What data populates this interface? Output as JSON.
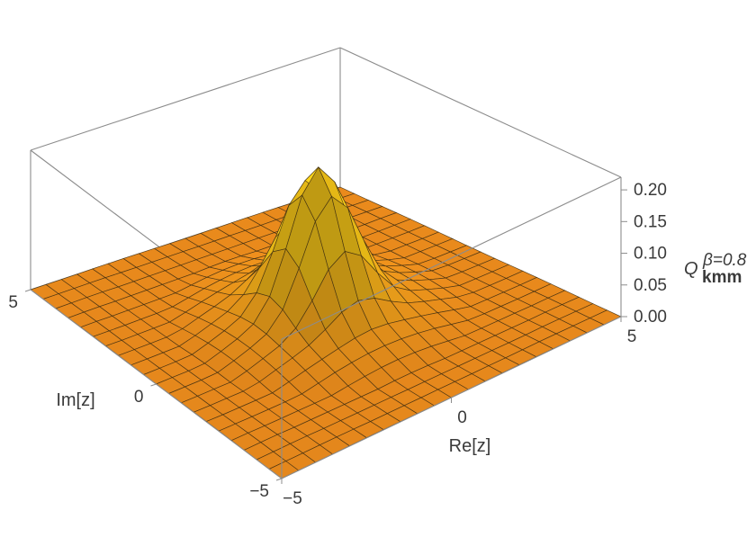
{
  "chart_data": {
    "type": "surface3d",
    "title": "",
    "xlabel": "Re[z]",
    "ylabel": "Im[z]",
    "zlabel": {
      "main": "Q",
      "subscript": "kmm",
      "superscript": "β=0.8"
    },
    "x_range": [
      -5,
      5
    ],
    "y_range": [
      -5,
      5
    ],
    "z_range": [
      0,
      0.22
    ],
    "x_ticks": [
      "−5",
      "0",
      "5"
    ],
    "y_ticks": [
      "−5",
      "0",
      "5"
    ],
    "z_ticks": [
      "0.00",
      "0.05",
      "0.10",
      "0.15",
      "0.20"
    ],
    "peak": {
      "x": 0,
      "y": 0,
      "z": 0.22
    },
    "grid_lines": 21,
    "surface_color": "#f7921e",
    "peak_color": "#f5c518",
    "mesh_color": "#3a2a10",
    "box_color": "#8c8c8c"
  }
}
